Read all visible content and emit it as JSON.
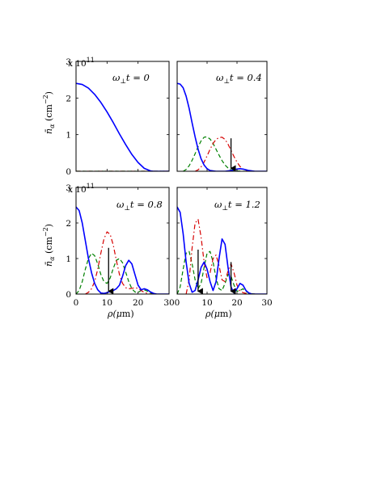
{
  "chart_data": [
    {
      "type": "line",
      "panel": "top-left",
      "annotation": "ω⊥t = 0",
      "exponent_label": "x 10",
      "exponent_power": "11",
      "ylabel_base": "n̄",
      "ylabel_sub": "α",
      "ylabel_unit": " (cm",
      "ylabel_unit_power": "−2",
      "ylabel_unit_close": ")",
      "xlabel": "",
      "xlim": [
        0,
        30
      ],
      "ylim": [
        0,
        3
      ],
      "xticks": [],
      "yticks": [
        "0",
        "1",
        "2",
        "3"
      ],
      "series": [
        {
          "color": "#0000ff",
          "style": "solid",
          "x": [
            0,
            2,
            4,
            6,
            8,
            10,
            12,
            14,
            16,
            18,
            20,
            22,
            24,
            25,
            26,
            30
          ],
          "y": [
            2.4,
            2.37,
            2.27,
            2.1,
            1.88,
            1.62,
            1.33,
            1.02,
            0.73,
            0.46,
            0.24,
            0.08,
            0.01,
            0,
            0,
            0
          ]
        },
        {
          "color": "#d60000",
          "style": "dashdot",
          "x": [
            0,
            30
          ],
          "y": [
            0,
            0
          ]
        },
        {
          "color": "#008000",
          "style": "dashed",
          "x": [
            0,
            30
          ],
          "y": [
            0,
            0
          ]
        }
      ],
      "arrows": []
    },
    {
      "type": "line",
      "panel": "top-right",
      "annotation": "ω⊥t = 0.4",
      "xlabel": "",
      "xlim": [
        0,
        30
      ],
      "ylim": [
        0,
        3
      ],
      "xticks": [],
      "yticks": [],
      "series": [
        {
          "color": "#0000ff",
          "style": "solid",
          "x": [
            0,
            1,
            2,
            3,
            4,
            5,
            6,
            7,
            8,
            9,
            10,
            11,
            12,
            13,
            14,
            15,
            16,
            17,
            18,
            19,
            20,
            21,
            22,
            23,
            24,
            25,
            26,
            28,
            30
          ],
          "y": [
            2.4,
            2.38,
            2.28,
            2.05,
            1.72,
            1.32,
            0.94,
            0.6,
            0.34,
            0.17,
            0.07,
            0.02,
            0.01,
            0,
            0,
            0,
            0,
            0.01,
            0.02,
            0.04,
            0.06,
            0.07,
            0.06,
            0.04,
            0.02,
            0.01,
            0,
            0,
            0
          ]
        },
        {
          "color": "#008000",
          "style": "dashed",
          "x": [
            2,
            3,
            4,
            5,
            6,
            7,
            8,
            9,
            10,
            11,
            12,
            13,
            14,
            15,
            16,
            17,
            18,
            19,
            20,
            22,
            24
          ],
          "y": [
            0,
            0.05,
            0.15,
            0.3,
            0.48,
            0.67,
            0.83,
            0.93,
            0.94,
            0.88,
            0.76,
            0.6,
            0.44,
            0.29,
            0.17,
            0.09,
            0.04,
            0.02,
            0.01,
            0,
            0
          ]
        },
        {
          "color": "#d60000",
          "style": "dashdot",
          "x": [
            6,
            7,
            8,
            9,
            10,
            11,
            12,
            13,
            14,
            15,
            16,
            17,
            18,
            19,
            20,
            21,
            22,
            23,
            24,
            25,
            26
          ],
          "y": [
            0,
            0.04,
            0.12,
            0.25,
            0.42,
            0.6,
            0.76,
            0.87,
            0.92,
            0.93,
            0.87,
            0.74,
            0.57,
            0.4,
            0.25,
            0.13,
            0.06,
            0.02,
            0.01,
            0,
            0
          ]
        }
      ],
      "arrows": [
        {
          "x": 18,
          "y_top": 0.9,
          "y_bottom": 0.08
        }
      ]
    },
    {
      "type": "line",
      "panel": "bottom-left",
      "annotation": "ω⊥t = 0.8",
      "exponent_label": "x 10",
      "exponent_power": "11",
      "ylabel_base": "n̄",
      "ylabel_sub": "α",
      "ylabel_unit": " (cm",
      "ylabel_unit_power": "−2",
      "ylabel_unit_close": ")",
      "xlabel_base": "ρ(",
      "xlabel_mu": "μ",
      "xlabel_end": "m)",
      "xlim": [
        0,
        30
      ],
      "ylim": [
        0,
        3
      ],
      "xticks": [
        "0",
        "10",
        "20",
        "30"
      ],
      "yticks": [
        "0",
        "1",
        "2",
        "3"
      ],
      "series": [
        {
          "color": "#0000ff",
          "style": "solid",
          "x": [
            0,
            1,
            2,
            3,
            4,
            5,
            6,
            7,
            8,
            9,
            10,
            11,
            12,
            13,
            14,
            15,
            16,
            17,
            18,
            19,
            20,
            21,
            22,
            23,
            24,
            25,
            26,
            30
          ],
          "y": [
            2.45,
            2.35,
            2.0,
            1.5,
            1.0,
            0.6,
            0.3,
            0.12,
            0.03,
            0.02,
            0.04,
            0.07,
            0.1,
            0.15,
            0.25,
            0.5,
            0.8,
            0.95,
            0.85,
            0.55,
            0.25,
            0.12,
            0.15,
            0.12,
            0.06,
            0.02,
            0,
            0
          ]
        },
        {
          "color": "#008000",
          "style": "dashed",
          "x": [
            0,
            1,
            2,
            3,
            4,
            5,
            6,
            7,
            8,
            9,
            10,
            11,
            12,
            13,
            14,
            15,
            16,
            17,
            18,
            19,
            20,
            21,
            22,
            23,
            24,
            26
          ],
          "y": [
            0,
            0.1,
            0.35,
            0.7,
            1.0,
            1.15,
            1.08,
            0.85,
            0.55,
            0.35,
            0.3,
            0.45,
            0.72,
            0.95,
            1.0,
            0.88,
            0.62,
            0.35,
            0.15,
            0.06,
            0.05,
            0.1,
            0.12,
            0.08,
            0.03,
            0
          ]
        },
        {
          "color": "#d60000",
          "style": "dashdot",
          "x": [
            3,
            4,
            5,
            6,
            7,
            8,
            9,
            10,
            11,
            12,
            13,
            14,
            15,
            16,
            17,
            18,
            19,
            20,
            21,
            22,
            23,
            24,
            26
          ],
          "y": [
            0,
            0.05,
            0.15,
            0.35,
            0.7,
            1.15,
            1.55,
            1.75,
            1.68,
            1.38,
            0.95,
            0.55,
            0.3,
            0.18,
            0.15,
            0.16,
            0.18,
            0.16,
            0.1,
            0.05,
            0.02,
            0,
            0
          ]
        }
      ],
      "arrows": [
        {
          "x": 10.5,
          "y_top": 1.3,
          "y_bottom": 0.08
        }
      ]
    },
    {
      "type": "line",
      "panel": "bottom-right",
      "annotation": "ω⊥t = 1.2",
      "xlabel_base": "ρ(",
      "xlabel_mu": "μ",
      "xlabel_end": "m)",
      "xlim": [
        0,
        30
      ],
      "ylim": [
        0,
        3
      ],
      "xticks": [
        "0",
        "10",
        "20",
        "30"
      ],
      "yticks": [],
      "series": [
        {
          "color": "#0000ff",
          "style": "solid",
          "x": [
            0,
            1,
            2,
            3,
            4,
            5,
            6,
            7,
            8,
            9,
            10,
            11,
            12,
            13,
            14,
            15,
            16,
            17,
            18,
            19,
            20,
            21,
            22,
            23,
            24,
            25,
            26,
            30
          ],
          "y": [
            2.45,
            2.3,
            1.7,
            0.9,
            0.3,
            0.05,
            0.1,
            0.4,
            0.75,
            0.9,
            0.7,
            0.35,
            0.1,
            0.35,
            1.0,
            1.55,
            1.4,
            0.75,
            0.2,
            0.03,
            0.15,
            0.3,
            0.25,
            0.1,
            0.03,
            0,
            0,
            0
          ]
        },
        {
          "color": "#008000",
          "style": "dashed",
          "x": [
            0,
            1,
            2,
            3,
            4,
            5,
            6,
            7,
            8,
            9,
            10,
            11,
            12,
            13,
            14,
            15,
            16,
            17,
            18,
            19,
            20,
            21,
            22,
            23,
            24,
            26
          ],
          "y": [
            0,
            0.2,
            0.7,
            1.15,
            1.2,
            0.85,
            0.4,
            0.15,
            0.3,
            0.75,
            1.15,
            1.2,
            0.9,
            0.45,
            0.15,
            0.1,
            0.3,
            0.55,
            0.5,
            0.25,
            0.08,
            0.1,
            0.15,
            0.08,
            0.02,
            0
          ]
        },
        {
          "color": "#d60000",
          "style": "dashdot",
          "x": [
            3,
            4,
            5,
            6,
            7,
            8,
            9,
            10,
            11,
            12,
            13,
            14,
            15,
            16,
            17,
            18,
            19,
            20,
            21,
            22,
            23,
            24,
            26
          ],
          "y": [
            0,
            0.4,
            1.3,
            2.0,
            2.1,
            1.6,
            0.9,
            0.45,
            0.6,
            1.0,
            1.1,
            0.8,
            0.4,
            0.35,
            0.65,
            0.85,
            0.6,
            0.25,
            0.08,
            0.04,
            0.02,
            0,
            0
          ]
        }
      ],
      "arrows": [
        {
          "x": 7,
          "y_top": 1.25,
          "y_bottom": 0.08
        },
        {
          "x": 18,
          "y_top": 0.9,
          "y_bottom": 0.08
        }
      ]
    }
  ]
}
